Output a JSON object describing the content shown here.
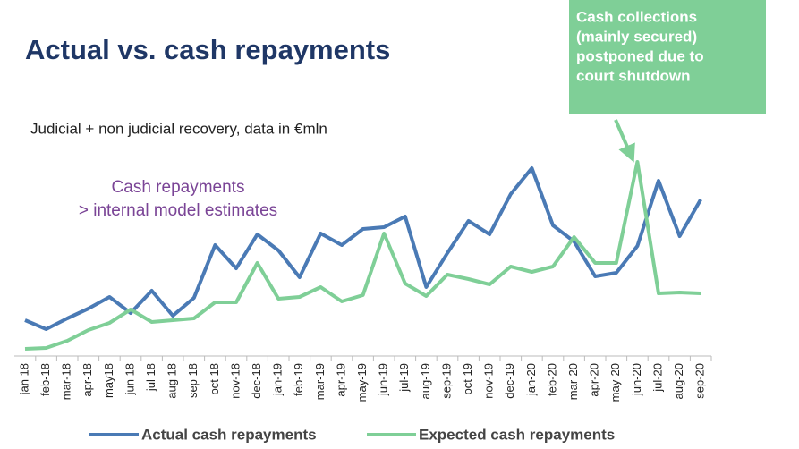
{
  "chart_data": {
    "type": "line",
    "title": "Actual vs. cash repayments",
    "subtitle": "Judicial + non judicial recovery, data in €mln",
    "annotation_lines": [
      "Cash repayments",
      "> internal model estimates"
    ],
    "callout_lines": [
      "Cash collections",
      "(mainly secured)",
      "postponed due to",
      "court shutdown"
    ],
    "categories": [
      "jan 18",
      "feb-18",
      "mar-18",
      "apr-18",
      "may18",
      "jun 18",
      "jul 18",
      "aug 18",
      "sep 18",
      "oct 18",
      "nov-18",
      "dec-18",
      "jan-19",
      "feb-19",
      "mar-19",
      "apr-19",
      "may-19",
      "jun-19",
      "jul-19",
      "aug-19",
      "sep-19",
      "oct 19",
      "nov-19",
      "dec-19",
      "jan-20",
      "feb-20",
      "mar-20",
      "apr-20",
      "may-20",
      "jun-20",
      "jul-20",
      "aug-20",
      "sep-20"
    ],
    "series": [
      {
        "name": "Actual cash repayments",
        "color": "#4a7ab5",
        "values": [
          42,
          32,
          44,
          55,
          68,
          50,
          75,
          47,
          67,
          126,
          100,
          138,
          120,
          90,
          139,
          126,
          144,
          146,
          158,
          79,
          117,
          153,
          138,
          183,
          212,
          148,
          130,
          91,
          95,
          125,
          198,
          136,
          177
        ]
      },
      {
        "name": "Expected cash repayments",
        "color": "#7fcf97",
        "values": [
          10,
          11,
          19,
          31,
          39,
          54,
          40,
          42,
          44,
          62,
          62,
          106,
          66,
          68,
          79,
          63,
          70,
          139,
          83,
          69,
          93,
          88,
          82,
          102,
          96,
          102,
          135,
          106,
          106,
          219,
          72,
          73,
          72
        ]
      }
    ],
    "ylim": [
      0,
      230
    ],
    "legend": "bottom"
  }
}
